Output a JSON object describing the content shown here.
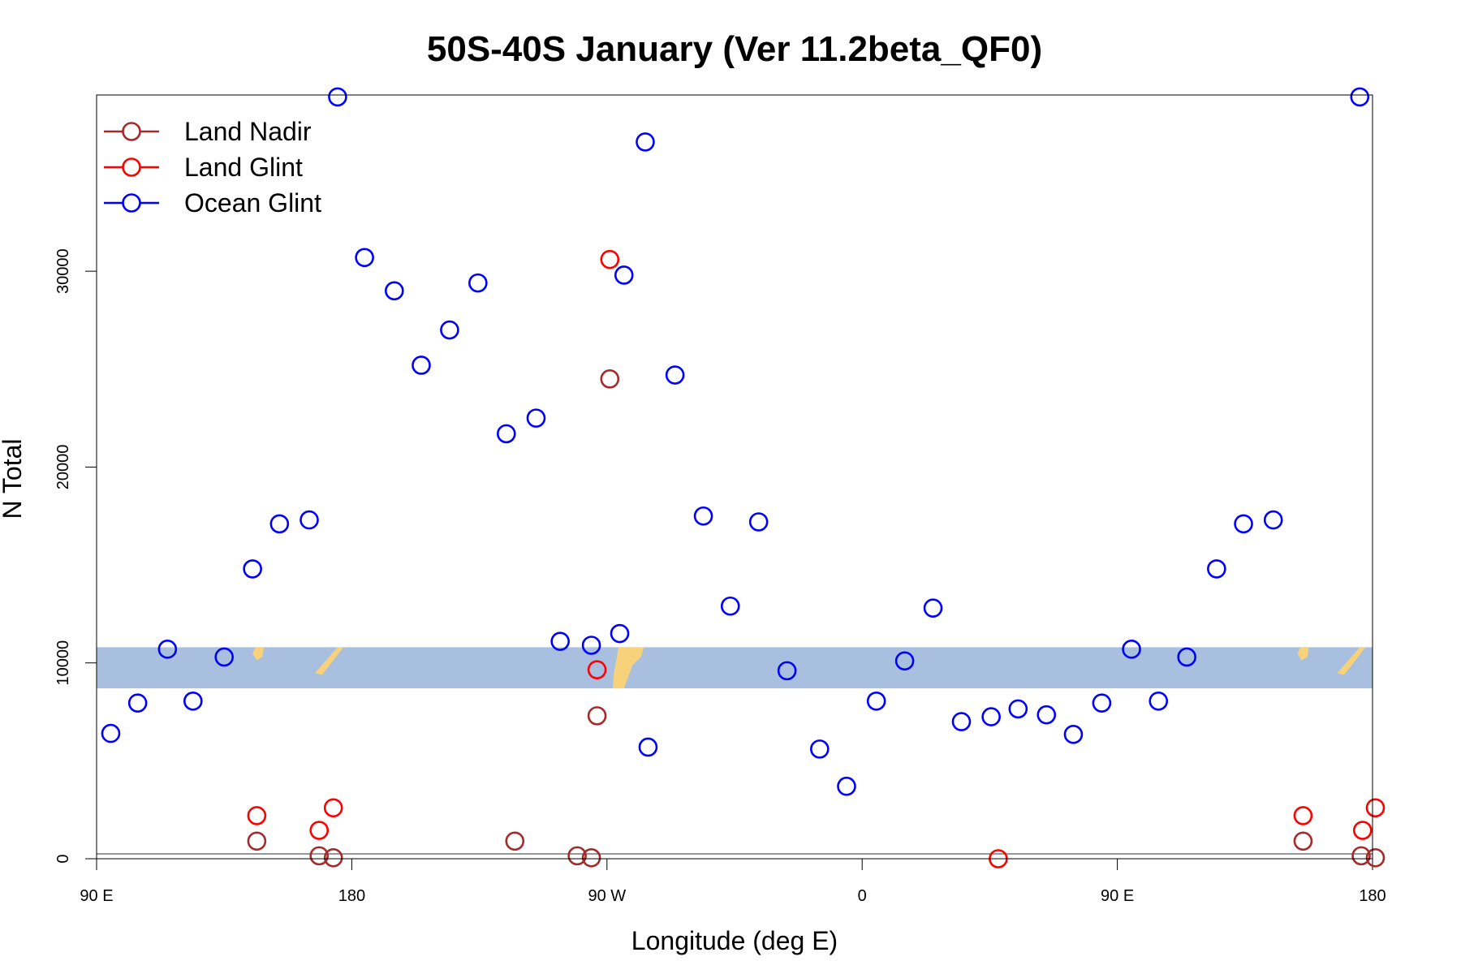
{
  "chart_data": {
    "type": "scatter",
    "title": "50S-40S January (Ver 11.2beta_QF0)",
    "xlabel": "Longitude (deg E)",
    "ylabel": "N Total",
    "xlim": [
      90,
      540
    ],
    "ylim": [
      0,
      39000
    ],
    "x_ticks": [
      {
        "value": 90,
        "label": "90 E"
      },
      {
        "value": 180,
        "label": "180"
      },
      {
        "value": 270,
        "label": "90 W"
      },
      {
        "value": 360,
        "label": "0"
      },
      {
        "value": 450,
        "label": "90 E"
      },
      {
        "value": 540,
        "label": "180"
      }
    ],
    "y_ticks": [
      {
        "value": 0,
        "label": "0"
      },
      {
        "value": 10000,
        "label": "10000"
      },
      {
        "value": 20000,
        "label": "20000"
      },
      {
        "value": 30000,
        "label": "30000"
      }
    ],
    "legend_position": "top-left",
    "grid": false,
    "background_band": {
      "color": "#a8bfdf",
      "land_color": "#f7d27a",
      "y_range": [
        8700,
        10800
      ]
    },
    "series": [
      {
        "name": "Land Nadir",
        "color": "#a52a2a",
        "points": [
          [
            146.5,
            900
          ],
          [
            168.5,
            150
          ],
          [
            173.5,
            50
          ],
          [
            266.5,
            7300
          ],
          [
            271,
            24500
          ],
          [
            237.5,
            900
          ],
          [
            259.5,
            150
          ],
          [
            264.5,
            50
          ],
          [
            515.5,
            900
          ],
          [
            536,
            150
          ],
          [
            541,
            50
          ]
        ]
      },
      {
        "name": "Land Glint",
        "color": "#ff0000",
        "points": [
          [
            146.5,
            2200
          ],
          [
            168.5,
            1450
          ],
          [
            173.5,
            2600
          ],
          [
            266.5,
            9650
          ],
          [
            271,
            30600
          ],
          [
            408,
            0
          ],
          [
            515.5,
            2200
          ],
          [
            536.5,
            1450
          ],
          [
            541,
            2600
          ]
        ]
      },
      {
        "name": "Ocean Glint",
        "color": "#0000ff",
        "points": [
          [
            95,
            6400
          ],
          [
            104.5,
            7950
          ],
          [
            115,
            10700
          ],
          [
            124,
            8050
          ],
          [
            135,
            10300
          ],
          [
            145,
            14800
          ],
          [
            154.5,
            17100
          ],
          [
            165,
            17300
          ],
          [
            175,
            38900
          ],
          [
            184.5,
            30700
          ],
          [
            195,
            29000
          ],
          [
            204.5,
            25200
          ],
          [
            214.5,
            27000
          ],
          [
            224.5,
            29400
          ],
          [
            234.5,
            21700
          ],
          [
            245,
            22500
          ],
          [
            253.5,
            11100
          ],
          [
            264.5,
            10900
          ],
          [
            274.5,
            11500
          ],
          [
            284.5,
            5700
          ],
          [
            276,
            29800
          ],
          [
            283.5,
            36600
          ],
          [
            294,
            24700
          ],
          [
            304,
            17500
          ],
          [
            313.5,
            12900
          ],
          [
            323.5,
            17200
          ],
          [
            333.5,
            9600
          ],
          [
            345,
            5600
          ],
          [
            354.5,
            3700
          ],
          [
            365,
            8050
          ],
          [
            375,
            10100
          ],
          [
            385,
            12800
          ],
          [
            395,
            7000
          ],
          [
            405.5,
            7250
          ],
          [
            415,
            7650
          ],
          [
            425,
            7350
          ],
          [
            434.5,
            6350
          ],
          [
            444.5,
            7950
          ],
          [
            455,
            10700
          ],
          [
            464.5,
            8050
          ],
          [
            474.5,
            10300
          ],
          [
            485,
            14800
          ],
          [
            494.5,
            17100
          ],
          [
            505,
            17300
          ],
          [
            535.5,
            38900
          ]
        ]
      }
    ]
  }
}
